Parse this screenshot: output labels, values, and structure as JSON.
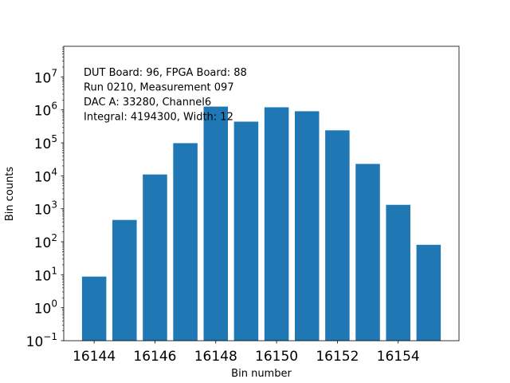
{
  "chart_data": {
    "type": "bar",
    "xlabel": "Bin number",
    "ylabel": "Bin counts",
    "x": [
      16144,
      16145,
      16146,
      16147,
      16148,
      16149,
      16150,
      16151,
      16152,
      16153,
      16154,
      16155
    ],
    "values": [
      8.8,
      460,
      11000,
      98000,
      1260000,
      440000,
      1200000,
      910000,
      240000,
      23000,
      1320,
      81
    ],
    "bar_width": 0.8,
    "bar_color": "#1f77b4",
    "xlim": [
      16143.0,
      16156.0
    ],
    "ylim": [
      0.1,
      85000000
    ],
    "yscale": "log",
    "xticks": [
      "16144",
      "16146",
      "16148",
      "16150",
      "16152",
      "16154"
    ],
    "yticks": [
      {
        "base": "10",
        "exp": "−1"
      },
      {
        "base": "10",
        "exp": "0"
      },
      {
        "base": "10",
        "exp": "1"
      },
      {
        "base": "10",
        "exp": "2"
      },
      {
        "base": "10",
        "exp": "3"
      },
      {
        "base": "10",
        "exp": "4"
      },
      {
        "base": "10",
        "exp": "5"
      },
      {
        "base": "10",
        "exp": "6"
      },
      {
        "base": "10",
        "exp": "7"
      }
    ],
    "grid": false,
    "annotations": [
      "DUT Board: 96, FPGA Board: 88",
      "Run 0210, Measurement 097",
      "DAC A: 33280, Channel6",
      "Integral: 4194300, Width: 12"
    ]
  }
}
